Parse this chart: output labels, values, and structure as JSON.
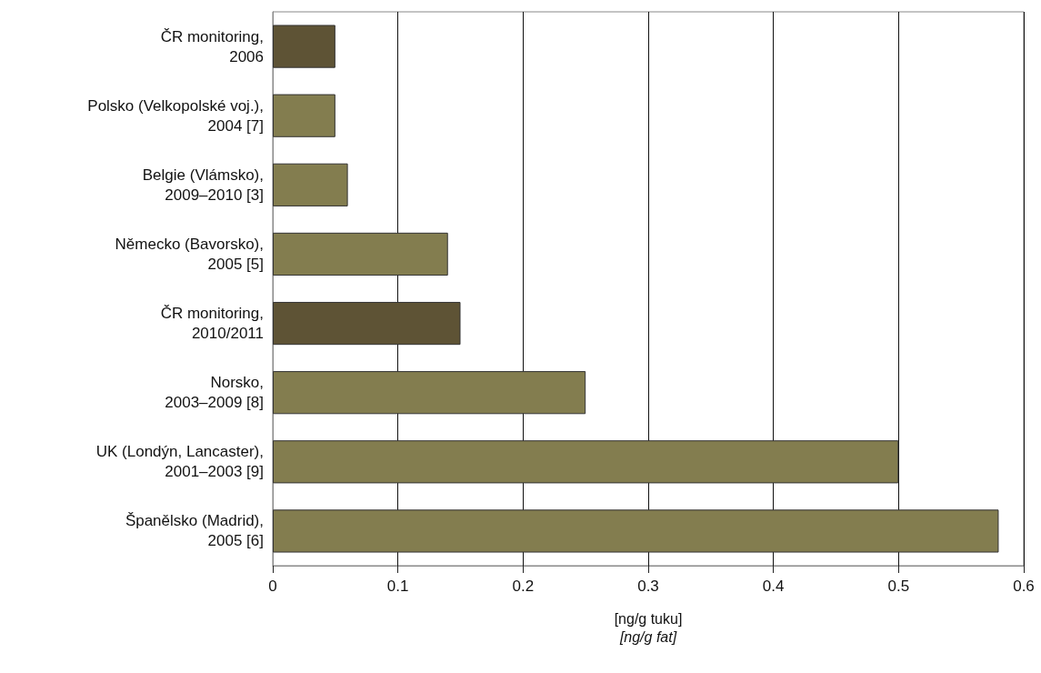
{
  "chart_data": {
    "type": "bar",
    "orientation": "horizontal",
    "categories": [
      "ČR monitoring,\n2006",
      "Polsko (Velkopolské voj.),\n2004 [7]",
      "Belgie (Vlámsko),\n2009–2010 [3]",
      "Německo (Bavorsko),\n2005 [5]",
      "ČR monitoring,\n2010/2011",
      "Norsko,\n2003–2009 [8]",
      "UK (Londýn, Lancaster),\n2001–2003 [9]",
      "Španělsko (Madrid),\n2005 [6]"
    ],
    "values": [
      0.05,
      0.05,
      0.06,
      0.14,
      0.15,
      0.25,
      0.5,
      0.58
    ],
    "colors": [
      "#5e5335",
      "#837d4f",
      "#837d4f",
      "#837d4f",
      "#5e5335",
      "#837d4f",
      "#837d4f",
      "#837d4f"
    ],
    "xlim": [
      0,
      0.6
    ],
    "xticks": [
      0,
      0.1,
      0.2,
      0.3,
      0.4,
      0.5,
      0.6
    ],
    "xlabel": "[ng/g tuku]\n[ng/g fat]",
    "grid": "x"
  }
}
